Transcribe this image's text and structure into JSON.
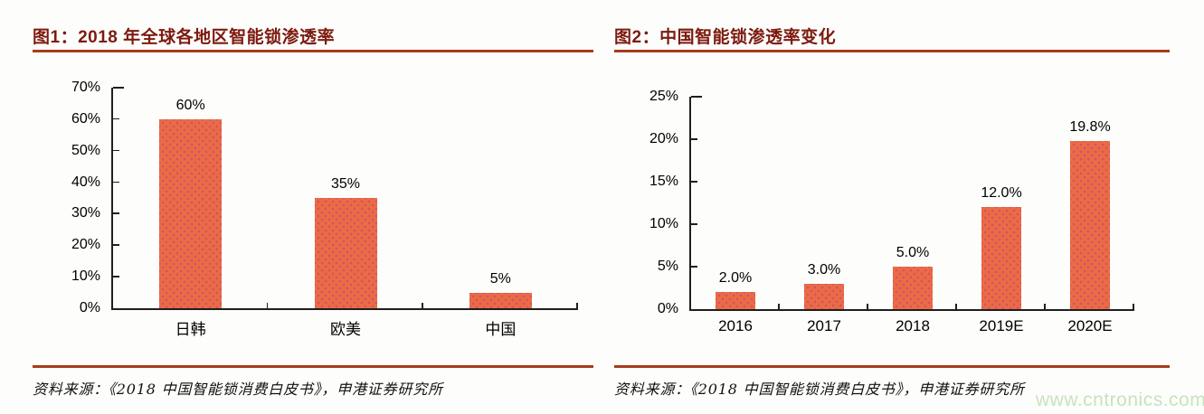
{
  "page": {
    "background": "#fdfefb",
    "watermark": "www.cntronics.com",
    "watermark_color": "#c8e2c0"
  },
  "theme": {
    "title_color": "#7d1a10",
    "rule_color": "#a63c1e",
    "bar_color": "#ec6b44",
    "bar_dot_color": "#cd5468",
    "axis_color": "#1f1f1f"
  },
  "figure1": {
    "label": "图1：",
    "title": "2018 年全球各地区智能锁渗透率",
    "source": "资料来源：《2018 中国智能锁消费白皮书》，申港证券研究所"
  },
  "figure2": {
    "label": "图2：",
    "title": "中国智能锁渗透率变化",
    "source": "资料来源：《2018 中国智能锁消费白皮书》，申港证券研究所"
  },
  "chart_data": [
    {
      "type": "bar",
      "title": "2018 年全球各地区智能锁渗透率",
      "categories": [
        "日韩",
        "欧美",
        "中国"
      ],
      "values": [
        60,
        35,
        5
      ],
      "data_labels": [
        "60%",
        "35%",
        "5%"
      ],
      "xlabel": "",
      "ylabel": "",
      "ylim": [
        0,
        70
      ],
      "ytick_values": [
        0,
        10,
        20,
        30,
        40,
        50,
        60,
        70
      ],
      "ytick_labels": [
        "0%",
        "10%",
        "20%",
        "30%",
        "40%",
        "50%",
        "60%",
        "70%"
      ],
      "grid": false,
      "legend": "none",
      "bar_color": "#ec6b44"
    },
    {
      "type": "bar",
      "title": "中国智能锁渗透率变化",
      "categories": [
        "2016",
        "2017",
        "2018",
        "2019E",
        "2020E"
      ],
      "values": [
        2.0,
        3.0,
        5.0,
        12.0,
        19.8
      ],
      "data_labels": [
        "2.0%",
        "3.0%",
        "5.0%",
        "12.0%",
        "19.8%"
      ],
      "xlabel": "",
      "ylabel": "",
      "ylim": [
        0,
        25
      ],
      "ytick_values": [
        0,
        5,
        10,
        15,
        20,
        25
      ],
      "ytick_labels": [
        "0%",
        "5%",
        "10%",
        "15%",
        "20%",
        "25%"
      ],
      "grid": false,
      "legend": "none",
      "bar_color": "#ec6b44"
    }
  ]
}
